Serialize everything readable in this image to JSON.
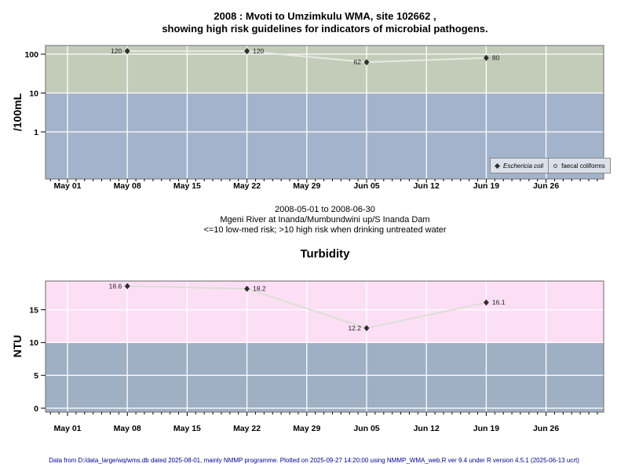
{
  "page": {
    "title_line1": "2008 : Mvoti to Umzimkulu WMA, site 102662 ,",
    "title_line2": "showing high risk guidelines for indicators of microbial pathogens.",
    "subtitle_line1": "2008-05-01 to 2008-06-30",
    "subtitle_line2": "Mgeni River at Inanda/Mumbundwini up/S Inanda Dam",
    "subtitle_line3": "<=10 low-med risk; >10 high risk when drinking untreated water",
    "footer": "Data from D:/data_large/wq/wms.db dated 2025-08-01, mainly NMMP programme. Plotted on 2025-09-27 14:20:00 using NMMP_WMA_web.R ver 9.4 under R version 4.5.1 (2025-06-13 ucrt)"
  },
  "colors": {
    "high_risk_green": "#c3ccb8",
    "low_risk_blue": "#a3b3cb",
    "high_risk_pink": "#fddff5",
    "low_risk_blue2": "#9fb0c5",
    "line_chart1": "#e9eae3",
    "line_chart2": "#dcded6",
    "marker": "#2e2e2e",
    "grid": "#ffffff",
    "plot_border": "#7e7e7e",
    "legend_bg": "#dbe1eb",
    "footer_text": "#00008b",
    "point_label": "#1b1b1b"
  },
  "chart_data": [
    {
      "type": "line",
      "name": "microbial-pathogens",
      "title": "2008 : Mvoti to Umzimkulu WMA, site 102662 , showing high risk guidelines for indicators of microbial pathogens.",
      "ylabel": "/100mL",
      "yscale": "log",
      "ytick_values": [
        100,
        10,
        1
      ],
      "ytick_labels": [
        "100",
        "10",
        "1"
      ],
      "risk_threshold": 10,
      "x_tick_labels": [
        "May 01",
        "May 08",
        "May 15",
        "May 22",
        "May 29",
        "Jun 05",
        "Jun 12",
        "Jun 19",
        "Jun 26"
      ],
      "x_tick_day_offsets": [
        0,
        7,
        14,
        21,
        28,
        35,
        42,
        49,
        56
      ],
      "x_range": "2008-05-01 to 2008-06-30",
      "series": [
        {
          "name": "Eschericia coli",
          "marker": "filled-diamond",
          "points": [
            {
              "date": "2008-05-08",
              "day": 7,
              "value": 120,
              "label": "120",
              "label_side": "left"
            },
            {
              "date": "2008-05-22",
              "day": 21,
              "value": 120,
              "label": "120",
              "label_side": "right"
            },
            {
              "date": "2008-06-05",
              "day": 35,
              "value": 62,
              "label": "62",
              "label_side": "left"
            },
            {
              "date": "2008-06-19",
              "day": 49,
              "value": 80,
              "label": "80",
              "label_side": "right"
            }
          ]
        },
        {
          "name": "faecal coliforms",
          "marker": "open-circle",
          "points": []
        }
      ],
      "legend": [
        {
          "label": "Eschericia coli",
          "marker": "filled-diamond",
          "italic": true
        },
        {
          "label": "faecal coliforms",
          "marker": "open-circle",
          "italic": false
        }
      ]
    },
    {
      "type": "line",
      "name": "turbidity",
      "title": "Turbidity",
      "ylabel": "NTU",
      "yscale": "linear",
      "ytick_values": [
        15,
        10,
        5,
        0
      ],
      "ytick_labels": [
        "15",
        "10",
        "5",
        "0"
      ],
      "risk_threshold": 10,
      "x_tick_labels": [
        "May 01",
        "May 08",
        "May 15",
        "May 22",
        "May 29",
        "Jun 05",
        "Jun 12",
        "Jun 19",
        "Jun 26"
      ],
      "x_tick_day_offsets": [
        0,
        7,
        14,
        21,
        28,
        35,
        42,
        49,
        56
      ],
      "x_range": "2008-05-01 to 2008-06-30",
      "series": [
        {
          "name": "Turbidity",
          "marker": "filled-diamond",
          "points": [
            {
              "date": "2008-05-08",
              "day": 7,
              "value": 18.6,
              "label": "18.6",
              "label_side": "left"
            },
            {
              "date": "2008-05-22",
              "day": 21,
              "value": 18.2,
              "label": "18.2",
              "label_side": "right"
            },
            {
              "date": "2008-06-05",
              "day": 35,
              "value": 12.2,
              "label": "12.2",
              "label_side": "left"
            },
            {
              "date": "2008-06-19",
              "day": 49,
              "value": 16.1,
              "label": "16.1",
              "label_side": "right"
            }
          ]
        }
      ]
    }
  ]
}
